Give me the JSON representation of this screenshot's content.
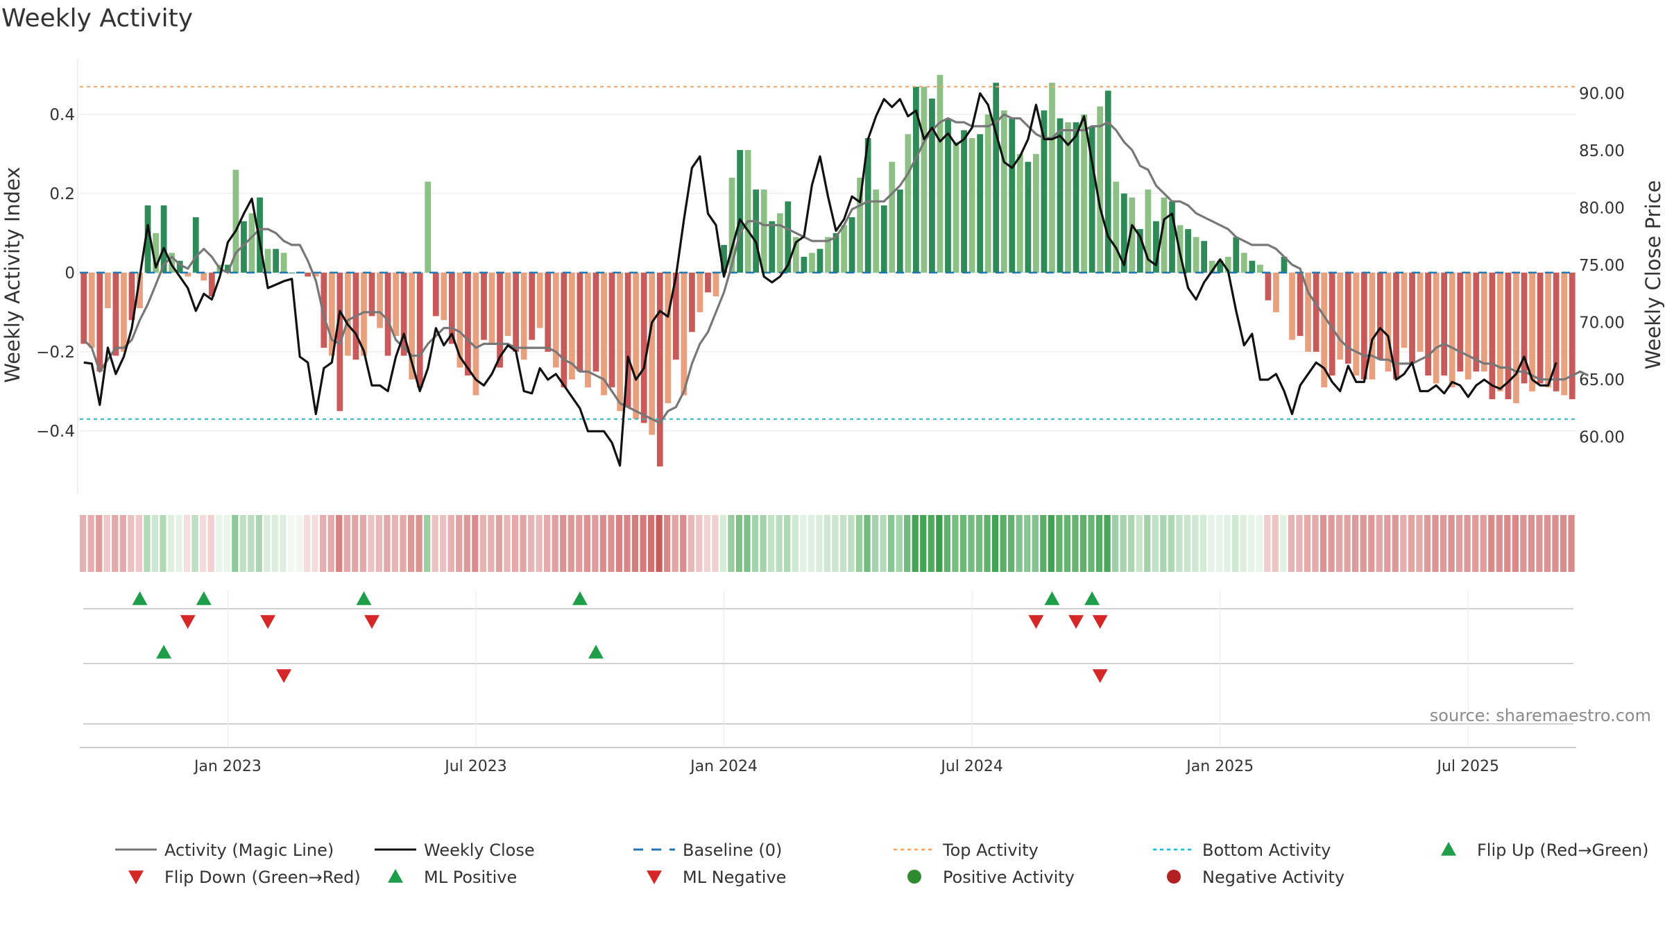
{
  "chart_data": {
    "type": "bar",
    "title": "Weekly Activity",
    "ylabel": "Weekly Activity Index",
    "y2label": "Weekly Close Price",
    "ylim": [
      -0.56,
      0.54
    ],
    "y2lim": [
      55.0,
      93.0
    ],
    "yticks": [
      {
        "value": 0.4,
        "label": "0.4"
      },
      {
        "value": 0.2,
        "label": "0.2"
      },
      {
        "value": 0,
        "label": "0"
      },
      {
        "value": -0.2,
        "label": "−0.2"
      },
      {
        "value": -0.4,
        "label": "−0.4"
      }
    ],
    "y2ticks": [
      {
        "value": 90,
        "label": "90.00"
      },
      {
        "value": 85,
        "label": "85.00"
      },
      {
        "value": 80,
        "label": "80.00"
      },
      {
        "value": 75,
        "label": "75.00"
      },
      {
        "value": 70,
        "label": "70.00"
      },
      {
        "value": 65,
        "label": "65.00"
      },
      {
        "value": 60,
        "label": "60.00"
      }
    ],
    "xticks": [
      {
        "index": 18,
        "label": "Jan 2023"
      },
      {
        "index": 49,
        "label": "Jul 2023"
      },
      {
        "index": 80,
        "label": "Jan 2024"
      },
      {
        "index": 111,
        "label": "Jul 2024"
      },
      {
        "index": 142,
        "label": "Jan 2025"
      },
      {
        "index": 173,
        "label": "Jul 2025"
      }
    ],
    "top_activity": 0.47,
    "bottom_activity": -0.37,
    "baseline": 0,
    "weeks_count": 187,
    "activity": [
      -0.18,
      -0.19,
      -0.25,
      -0.09,
      -0.21,
      -0.2,
      -0.12,
      -0.09,
      0.17,
      0.1,
      0.17,
      0.05,
      0.03,
      -0.01,
      0.14,
      -0.02,
      -0.06,
      0.02,
      0.02,
      0.26,
      0.13,
      0.15,
      0.19,
      0.06,
      0.06,
      0.05,
      0.0,
      0.0,
      -0.01,
      -0.01,
      -0.19,
      -0.21,
      -0.35,
      -0.21,
      -0.22,
      -0.21,
      -0.11,
      -0.14,
      -0.21,
      -0.16,
      -0.21,
      -0.27,
      -0.29,
      0.23,
      -0.11,
      -0.12,
      -0.18,
      -0.24,
      -0.26,
      -0.31,
      -0.17,
      -0.18,
      -0.24,
      -0.16,
      -0.2,
      -0.22,
      -0.17,
      -0.14,
      -0.2,
      -0.24,
      -0.29,
      -0.27,
      -0.25,
      -0.29,
      -0.25,
      -0.31,
      -0.29,
      -0.35,
      -0.34,
      -0.37,
      -0.38,
      -0.41,
      -0.49,
      -0.33,
      -0.22,
      -0.31,
      -0.15,
      -0.1,
      -0.05,
      -0.06,
      0.07,
      0.24,
      0.31,
      0.31,
      0.21,
      0.21,
      0.13,
      0.15,
      0.18,
      0.09,
      0.04,
      0.05,
      0.06,
      0.09,
      0.1,
      0.12,
      0.14,
      0.24,
      0.34,
      0.21,
      0.17,
      0.28,
      0.21,
      0.35,
      0.47,
      0.47,
      0.44,
      0.5,
      0.39,
      0.33,
      0.36,
      0.34,
      0.35,
      0.4,
      0.48,
      0.41,
      0.39,
      0.3,
      0.28,
      0.3,
      0.41,
      0.48,
      0.39,
      0.38,
      0.38,
      0.4,
      0.37,
      0.42,
      0.46,
      0.23,
      0.2,
      0.19,
      0.11,
      0.21,
      0.13,
      0.19,
      0.18,
      0.12,
      0.11,
      0.09,
      0.08,
      0.03,
      0.03,
      0.04,
      0.09,
      0.05,
      0.03,
      0.02,
      -0.07,
      -0.1,
      0.04,
      -0.17,
      -0.16,
      -0.2,
      -0.2,
      -0.29,
      -0.26,
      -0.22,
      -0.23,
      -0.26,
      -0.27,
      -0.27,
      -0.22,
      -0.25,
      -0.27,
      -0.19,
      -0.23,
      -0.2,
      -0.26,
      -0.28,
      -0.26,
      -0.29,
      -0.25,
      -0.27,
      -0.25,
      -0.25,
      -0.32,
      -0.3,
      -0.32,
      -0.33,
      -0.28,
      -0.3,
      -0.28,
      -0.29,
      -0.3,
      -0.31,
      -0.32
    ],
    "close": [
      66.5,
      66.4,
      62.8,
      67.8,
      65.5,
      67.0,
      69.5,
      74.0,
      78.5,
      74.8,
      76.5,
      75.0,
      74.0,
      73.0,
      71.0,
      72.5,
      72.0,
      74.0,
      77.0,
      78.0,
      79.5,
      80.8,
      77.0,
      73.0,
      73.3,
      73.6,
      73.8,
      67.0,
      66.5,
      62.0,
      66.0,
      66.5,
      71.0,
      69.8,
      69.0,
      67.5,
      64.5,
      64.5,
      64.0,
      67.0,
      69.0,
      66.5,
      64.0,
      66.0,
      69.5,
      68.0,
      69.0,
      67.0,
      66.0,
      65.0,
      64.5,
      65.5,
      67.0,
      68.0,
      67.5,
      64.0,
      63.8,
      66.0,
      65.0,
      65.5,
      64.5,
      63.5,
      62.5,
      60.5,
      60.5,
      60.5,
      59.5,
      57.5,
      67.0,
      65.0,
      66.0,
      70.0,
      71.0,
      70.5,
      74.0,
      79.0,
      83.5,
      84.5,
      79.5,
      78.5,
      74.0,
      76.5,
      79.0,
      78.0,
      77.0,
      74.0,
      73.5,
      74.0,
      75.0,
      77.0,
      77.5,
      82.0,
      84.5,
      81.0,
      78.0,
      79.0,
      81.0,
      80.5,
      86.0,
      88.0,
      89.5,
      88.8,
      89.5,
      88.0,
      88.5,
      86.0,
      87.0,
      85.8,
      86.5,
      85.5,
      86.0,
      87.0,
      90.0,
      89.0,
      86.5,
      84.0,
      83.5,
      84.5,
      86.0,
      89.0,
      86.0,
      86.0,
      86.3,
      85.5,
      86.3,
      88.0,
      84.0,
      80.0,
      77.5,
      76.5,
      75.0,
      78.5,
      77.5,
      75.5,
      75.0,
      79.0,
      79.5,
      76.0,
      73.0,
      72.0,
      73.5,
      74.5,
      75.5,
      74.5,
      71.0,
      68.0,
      69.0,
      65.0,
      65.0,
      65.5,
      64.0,
      62.0,
      64.5,
      65.5,
      66.5,
      66.0,
      64.8,
      64.0,
      66.2,
      64.8,
      64.8,
      68.5,
      69.5,
      68.8,
      65.0,
      65.5,
      66.5,
      64.0,
      64.0,
      64.5,
      63.8,
      64.8,
      64.5,
      63.5,
      64.5,
      65.0,
      64.5,
      64.2,
      64.8,
      65.5,
      67.0,
      65.0,
      64.5,
      64.5,
      66.5
    ],
    "magic_line": [
      -0.17,
      -0.19,
      -0.25,
      -0.22,
      -0.19,
      -0.19,
      -0.17,
      -0.12,
      -0.08,
      -0.03,
      0.02,
      0.04,
      0.02,
      0.01,
      0.04,
      0.06,
      0.04,
      0.01,
      0.0,
      0.05,
      0.07,
      0.09,
      0.11,
      0.11,
      0.1,
      0.08,
      0.07,
      0.07,
      0.03,
      -0.02,
      -0.11,
      -0.17,
      -0.18,
      -0.12,
      -0.11,
      -0.1,
      -0.1,
      -0.1,
      -0.12,
      -0.17,
      -0.19,
      -0.21,
      -0.21,
      -0.18,
      -0.16,
      -0.14,
      -0.14,
      -0.15,
      -0.17,
      -0.19,
      -0.18,
      -0.18,
      -0.18,
      -0.18,
      -0.19,
      -0.19,
      -0.19,
      -0.19,
      -0.19,
      -0.2,
      -0.22,
      -0.23,
      -0.25,
      -0.25,
      -0.26,
      -0.27,
      -0.3,
      -0.33,
      -0.34,
      -0.35,
      -0.36,
      -0.37,
      -0.38,
      -0.35,
      -0.34,
      -0.3,
      -0.23,
      -0.18,
      -0.15,
      -0.1,
      -0.05,
      0.02,
      0.1,
      0.13,
      0.13,
      0.12,
      0.12,
      0.12,
      0.11,
      0.1,
      0.09,
      0.08,
      0.08,
      0.08,
      0.09,
      0.12,
      0.16,
      0.17,
      0.18,
      0.18,
      0.18,
      0.2,
      0.22,
      0.25,
      0.29,
      0.33,
      0.36,
      0.38,
      0.39,
      0.38,
      0.38,
      0.37,
      0.37,
      0.37,
      0.38,
      0.4,
      0.39,
      0.39,
      0.37,
      0.35,
      0.34,
      0.34,
      0.36,
      0.36,
      0.36,
      0.36,
      0.37,
      0.37,
      0.38,
      0.36,
      0.33,
      0.31,
      0.27,
      0.26,
      0.22,
      0.2,
      0.18,
      0.18,
      0.17,
      0.15,
      0.14,
      0.13,
      0.12,
      0.11,
      0.09,
      0.08,
      0.07,
      0.07,
      0.07,
      0.06,
      0.04,
      0.02,
      0.01,
      -0.05,
      -0.08,
      -0.11,
      -0.14,
      -0.17,
      -0.19,
      -0.2,
      -0.21,
      -0.21,
      -0.22,
      -0.22,
      -0.23,
      -0.23,
      -0.23,
      -0.22,
      -0.21,
      -0.19,
      -0.18,
      -0.19,
      -0.2,
      -0.21,
      -0.22,
      -0.23,
      -0.23,
      -0.24,
      -0.24,
      -0.25,
      -0.25,
      -0.26,
      -0.27,
      -0.27,
      -0.27,
      -0.27,
      -0.26,
      -0.25,
      -0.26
    ],
    "flip_up": [
      7,
      15,
      35,
      62,
      121,
      126
    ],
    "flip_down": [
      13,
      23,
      36,
      119,
      124,
      127
    ],
    "ml_positive": [
      10,
      64
    ],
    "ml_negative": [
      25,
      127
    ],
    "legend": [
      {
        "key": "magic_line",
        "label": "Activity (Magic Line)"
      },
      {
        "key": "close",
        "label": "Weekly Close"
      },
      {
        "key": "baseline",
        "label": "Baseline (0)"
      },
      {
        "key": "top",
        "label": "Top Activity"
      },
      {
        "key": "bottom",
        "label": "Bottom Activity"
      },
      {
        "key": "flip_up",
        "label": "Flip Up (Red→Green)"
      },
      {
        "key": "flip_down",
        "label": "Flip Down (Green→Red)"
      },
      {
        "key": "ml_positive",
        "label": "ML Positive"
      },
      {
        "key": "ml_negative",
        "label": "ML Negative"
      },
      {
        "key": "pos_activity",
        "label": "Positive Activity"
      },
      {
        "key": "neg_activity",
        "label": "Negative Activity"
      }
    ],
    "source": "source: sharemaestro.com"
  },
  "colors": {
    "green_dark": "#2e8b57",
    "green_light": "#8cc084",
    "red_dark": "#c85a5a",
    "red_light": "#e8a07e",
    "close_line": "#111111",
    "magic_line": "#777777",
    "baseline": "#1f77b4",
    "top_line": "#f4a460",
    "bottom_line": "#17becf",
    "flip_up": "#1f9e4a",
    "flip_down": "#d62728",
    "pos_dot": "#2e8b2e",
    "neg_dot": "#b22222"
  }
}
